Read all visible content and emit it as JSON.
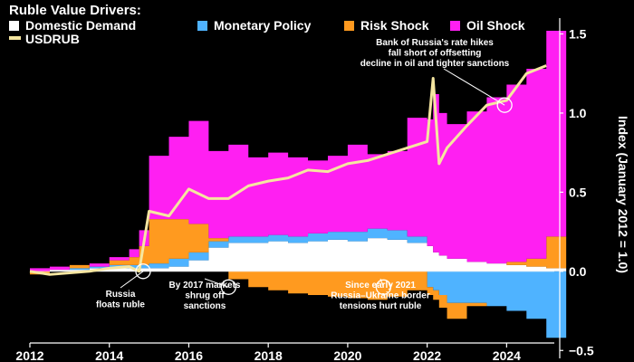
{
  "chart_data": {
    "type": "area",
    "title": "Ruble Value Drivers:",
    "ylabel": "Index (January 2012 = 1.0)",
    "xlim": [
      2012,
      2025.2
    ],
    "ylim": [
      -0.55,
      1.6
    ],
    "x_ticks": [
      2012,
      2014,
      2016,
      2018,
      2020,
      2022,
      2024
    ],
    "y_ticks": [
      1.5,
      1.0,
      0.5,
      0.0,
      -0.5
    ],
    "y_tick_labels": [
      "1.5",
      "1.0",
      "0.5",
      "0.0",
      "−0.5"
    ],
    "x": [
      2012,
      2012.5,
      2013,
      2013.5,
      2014,
      2014.5,
      2014.75,
      2015,
      2015.5,
      2016,
      2016.5,
      2017,
      2017.5,
      2018,
      2018.5,
      2019,
      2019.5,
      2020,
      2020.5,
      2021,
      2021.5,
      2022,
      2022.15,
      2022.3,
      2022.5,
      2023,
      2023.5,
      2024,
      2024.5,
      2025
    ],
    "series": [
      {
        "name": "Domestic Demand",
        "color": "#ffffff",
        "values": [
          0,
          0.01,
          0.01,
          0.02,
          0.02,
          0.02,
          0.02,
          0.02,
          0.03,
          0.07,
          0.15,
          0.18,
          0.18,
          0.19,
          0.18,
          0.19,
          0.2,
          0.19,
          0.21,
          0.2,
          0.18,
          0.16,
          0.12,
          0.1,
          0.08,
          0.06,
          0.05,
          0.04,
          0.03,
          0.02
        ]
      },
      {
        "name": "Monetary Policy",
        "color": "#4fb3ff",
        "values": [
          0,
          0,
          0.01,
          0.01,
          0.02,
          0.02,
          0.02,
          0.03,
          0.05,
          0.05,
          0.04,
          0.04,
          0.04,
          0.04,
          0.04,
          0.05,
          0.05,
          0.06,
          0.06,
          0.06,
          0.04,
          -0.1,
          -0.12,
          -0.15,
          -0.2,
          -0.2,
          -0.22,
          -0.25,
          -0.3,
          -0.42
        ]
      },
      {
        "name": "Risk Shock",
        "color": "#ff9a1f",
        "values": [
          -0.02,
          0,
          0.02,
          0,
          0.03,
          0.05,
          0.12,
          0.28,
          0.25,
          0.18,
          0.02,
          -0.05,
          -0.1,
          -0.12,
          -0.14,
          -0.15,
          -0.16,
          -0.17,
          -0.18,
          -0.16,
          -0.12,
          -0.05,
          -0.06,
          -0.08,
          -0.1,
          -0.02,
          0.0,
          0.02,
          0.05,
          0.2
        ]
      },
      {
        "name": "Oil Shock",
        "color": "#ff1ff2",
        "values": [
          0.02,
          0.02,
          0,
          0.02,
          0.02,
          0.05,
          0.1,
          0.4,
          0.52,
          0.65,
          0.55,
          0.58,
          0.5,
          0.52,
          0.5,
          0.46,
          0.48,
          0.55,
          0.47,
          0.5,
          0.75,
          0.8,
          1.0,
          0.9,
          0.85,
          0.95,
          1.05,
          1.12,
          1.2,
          1.3
        ]
      },
      {
        "name": "USDRUB",
        "color": "#f5e6a0",
        "line": true,
        "values": [
          0,
          -0.02,
          -0.01,
          0.0,
          0.02,
          0.03,
          0.0,
          0.38,
          0.35,
          0.52,
          0.46,
          0.46,
          0.54,
          0.57,
          0.59,
          0.64,
          0.63,
          0.68,
          0.7,
          0.74,
          0.78,
          0.82,
          1.22,
          0.68,
          0.78,
          0.92,
          1.05,
          1.08,
          1.25,
          1.3
        ]
      }
    ],
    "annotations": [
      {
        "id": "floats",
        "lines": [
          "Russia",
          "floats ruble"
        ],
        "point": [
          2014.85,
          0.0
        ]
      },
      {
        "id": "shrug",
        "lines": [
          "By 2017 markets",
          "shrug off",
          "sanctions"
        ],
        "point": [
          2017,
          -0.1
        ]
      },
      {
        "id": "tensions",
        "lines": [
          "Since early 2021",
          "Russia–Ukraine border",
          "tensions hurt ruble"
        ],
        "point": [
          2020.9,
          -0.1
        ]
      },
      {
        "id": "hikes",
        "lines": [
          "Bank of Russia's rate hikes",
          "fall short of offsetting",
          "decline in oil and tighter sanctions"
        ],
        "point": [
          2023.95,
          1.05
        ]
      }
    ]
  }
}
